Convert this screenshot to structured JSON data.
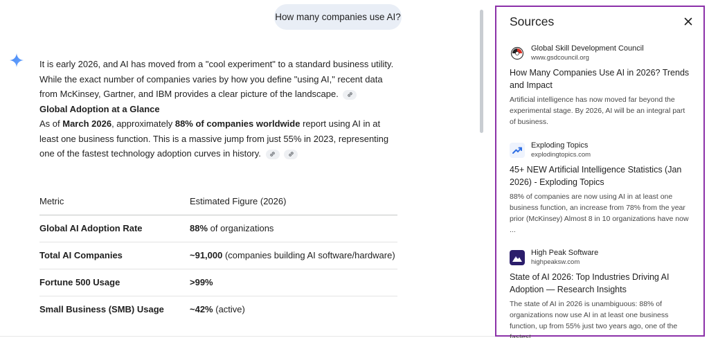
{
  "user_query": "How many companies use AI?",
  "answer": {
    "intro": "It is early 2026, and AI has moved from a \"cool experiment\" to a standard business utility. While the exact number of companies varies by how you define \"using AI,\" recent data from McKinsey, Gartner, and IBM provides a clear picture of the landscape.",
    "heading": "Global Adoption at a Glance",
    "para_prefix": "As of ",
    "para_bold1": "March 2026",
    "para_mid": ", approximately ",
    "para_bold2": "88% of companies worldwide",
    "para_suffix": " report using AI in at least one business function. This is a massive jump from just 55% in 2023, representing one of the fastest technology adoption curves in history."
  },
  "table": {
    "headers": [
      "Metric",
      "Estimated Figure (2026)"
    ],
    "rows": [
      {
        "metric": "Global AI Adoption Rate",
        "bold": "88%",
        "rest": " of organizations"
      },
      {
        "metric": "Total AI Companies",
        "bold": "~91,000",
        "rest": " (companies building AI software/hardware)"
      },
      {
        "metric": "Fortune 500 Usage",
        "bold": ">99%",
        "rest": ""
      },
      {
        "metric": "Small Business (SMB) Usage",
        "bold": "~42%",
        "rest": " (active)"
      }
    ]
  },
  "sources": {
    "title": "Sources",
    "items": [
      {
        "name": "Global Skill Development Council",
        "url": "www.gsdcouncil.org",
        "title": "How Many Companies Use AI in 2026? Trends and Impact",
        "snippet": "Artificial intelligence has now moved far beyond the experimental stage. By 2026, AI will be an integral part of business."
      },
      {
        "name": "Exploding Topics",
        "url": "explodingtopics.com",
        "title": "45+ NEW Artificial Intelligence Statistics (Jan 2026) - Exploding Topics",
        "snippet": "88% of companies are now using AI in at least one business function, an increase from 78% from the year prior (McKinsey) Almost 8 in 10 organizations have now ..."
      },
      {
        "name": "High Peak Software",
        "url": "highpeaksw.com",
        "title": "State of AI 2026: Top Industries Driving AI Adoption — Research Insights",
        "snippet": "The state of AI in 2026 is unambiguous: 88% of organizations now use AI in at least one business function, up from 55% just two years ago, one of the fastest ..."
      }
    ]
  },
  "colors": {
    "panel_border": "#8b30a8",
    "user_bubble": "#e9eef6",
    "gemini_blue": "#4285f4"
  }
}
